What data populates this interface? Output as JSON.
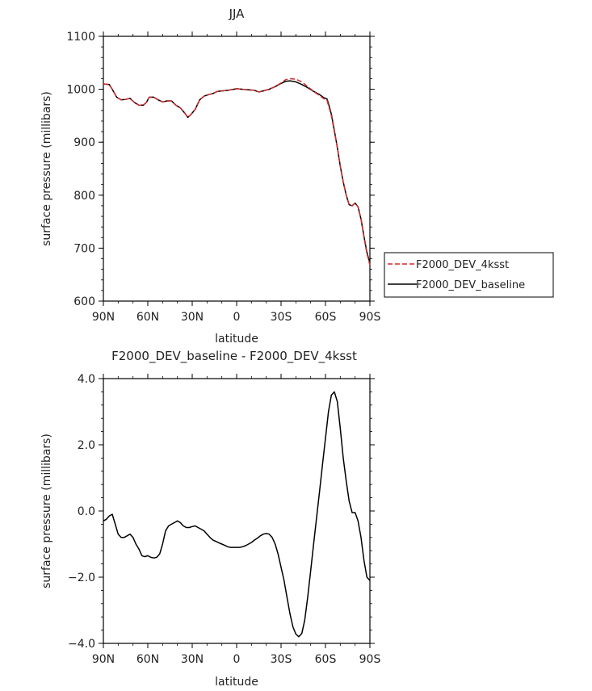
{
  "chart_data": [
    {
      "type": "line",
      "title": "JJA",
      "xlabel": "latitude",
      "ylabel": "surface pressure (millibars)",
      "xlim": [
        90,
        -90
      ],
      "ylim": [
        600,
        1100
      ],
      "xticks": [
        {
          "value": 90,
          "label": "90N"
        },
        {
          "value": 60,
          "label": "60N"
        },
        {
          "value": 30,
          "label": "30N"
        },
        {
          "value": 0,
          "label": "0"
        },
        {
          "value": -30,
          "label": "30S"
        },
        {
          "value": -60,
          "label": "60S"
        },
        {
          "value": -90,
          "label": "90S"
        }
      ],
      "yticks": [
        {
          "value": 600,
          "label": "600"
        },
        {
          "value": 700,
          "label": "700"
        },
        {
          "value": 800,
          "label": "800"
        },
        {
          "value": 900,
          "label": "900"
        },
        {
          "value": 1000,
          "label": "1000"
        },
        {
          "value": 1100,
          "label": "1100"
        }
      ],
      "legend_position": "right",
      "series": [
        {
          "name": "F2000_DEV_4ksst",
          "color": "#d42a2a",
          "dash": "dashed",
          "x": [
            90,
            86,
            84,
            81,
            78,
            75,
            72,
            69,
            66,
            63,
            61,
            59,
            56,
            53,
            50,
            47,
            44,
            41,
            38,
            35,
            33,
            31,
            28,
            25,
            22,
            19,
            16,
            13,
            10,
            6,
            2,
            0,
            -4,
            -8,
            -12,
            -15,
            -18,
            -22,
            -26,
            -30,
            -33,
            -36,
            -40,
            -44,
            -48,
            -52,
            -56,
            -59,
            -61,
            -62,
            -64,
            -66,
            -68,
            -70,
            -72,
            -74,
            -76,
            -78,
            -80,
            -82,
            -84,
            -86,
            -88,
            -90
          ],
          "y": [
            1010,
            1009,
            1000,
            985,
            980,
            981,
            983,
            975,
            970,
            970,
            975,
            985,
            985,
            980,
            976,
            978,
            978,
            970,
            965,
            955,
            947,
            952,
            962,
            980,
            987,
            990,
            992,
            996,
            997,
            998,
            1000,
            1001,
            1000,
            999,
            998,
            995,
            997,
            1000,
            1005,
            1012,
            1018,
            1020,
            1019,
            1014,
            1005,
            996,
            988,
            982,
            979,
            970,
            950,
            920,
            890,
            855,
            825,
            800,
            782,
            780,
            785,
            778,
            755,
            720,
            690,
            668
          ]
        },
        {
          "name": "F2000_DEV_baseline",
          "color": "#000000",
          "dash": "solid",
          "x": [
            90,
            86,
            84,
            81,
            78,
            75,
            72,
            69,
            66,
            63,
            61,
            59,
            56,
            53,
            50,
            47,
            44,
            41,
            38,
            35,
            33,
            31,
            28,
            25,
            22,
            19,
            16,
            13,
            10,
            6,
            2,
            0,
            -4,
            -8,
            -12,
            -15,
            -18,
            -22,
            -26,
            -30,
            -33,
            -36,
            -40,
            -44,
            -48,
            -52,
            -56,
            -59,
            -61,
            -62,
            -64,
            -66,
            -68,
            -70,
            -72,
            -74,
            -76,
            -78,
            -80,
            -82,
            -84,
            -86,
            -88,
            -90
          ],
          "y": [
            1010,
            1009,
            1000,
            985,
            980,
            981,
            983,
            975,
            970,
            970,
            975,
            985,
            985,
            980,
            976,
            978,
            978,
            970,
            965,
            955,
            947,
            952,
            962,
            980,
            987,
            990,
            992,
            996,
            997,
            998,
            1000,
            1001,
            1000,
            999,
            998,
            995,
            997,
            1000,
            1005,
            1011,
            1015,
            1016,
            1014,
            1009,
            1003,
            996,
            990,
            984,
            982,
            973,
            953,
            922,
            890,
            855,
            825,
            800,
            782,
            780,
            785,
            778,
            755,
            722,
            692,
            672
          ]
        }
      ]
    },
    {
      "type": "line",
      "title": "F2000_DEV_baseline - F2000_DEV_4ksst",
      "xlabel": "latitude",
      "ylabel": "surface pressure (millibars)",
      "xlim": [
        90,
        -90
      ],
      "ylim": [
        -4,
        4
      ],
      "xticks": [
        {
          "value": 90,
          "label": "90N"
        },
        {
          "value": 60,
          "label": "60N"
        },
        {
          "value": 30,
          "label": "30N"
        },
        {
          "value": 0,
          "label": "0"
        },
        {
          "value": -30,
          "label": "30S"
        },
        {
          "value": -60,
          "label": "60S"
        },
        {
          "value": -90,
          "label": "90S"
        }
      ],
      "yticks": [
        {
          "value": -4,
          "label": "−4.0"
        },
        {
          "value": -2,
          "label": "−2.0"
        },
        {
          "value": 0,
          "label": "0.0"
        },
        {
          "value": 2,
          "label": "2.0"
        },
        {
          "value": 4,
          "label": "4.0"
        }
      ],
      "series": [
        {
          "name": "",
          "color": "#000000",
          "dash": "solid",
          "x": [
            90,
            88,
            86,
            84,
            82,
            80,
            78,
            76,
            74,
            72,
            70,
            68,
            66,
            64,
            62,
            60,
            58,
            56,
            54,
            52,
            50,
            48,
            46,
            44,
            42,
            40,
            38,
            36,
            34,
            32,
            30,
            28,
            26,
            24,
            22,
            20,
            18,
            16,
            14,
            12,
            10,
            8,
            6,
            4,
            2,
            0,
            -2,
            -4,
            -6,
            -8,
            -10,
            -12,
            -14,
            -16,
            -18,
            -20,
            -22,
            -24,
            -26,
            -28,
            -30,
            -32,
            -34,
            -36,
            -38,
            -40,
            -42,
            -44,
            -46,
            -48,
            -50,
            -52,
            -54,
            -56,
            -58,
            -60,
            -62,
            -64,
            -66,
            -68,
            -70,
            -72,
            -74,
            -76,
            -78,
            -80,
            -82,
            -84,
            -86,
            -88,
            -90
          ],
          "y": [
            -0.3,
            -0.25,
            -0.15,
            -0.1,
            -0.4,
            -0.7,
            -0.8,
            -0.8,
            -0.75,
            -0.7,
            -0.8,
            -1.0,
            -1.15,
            -1.35,
            -1.38,
            -1.35,
            -1.4,
            -1.42,
            -1.4,
            -1.3,
            -1.0,
            -0.6,
            -0.45,
            -0.4,
            -0.35,
            -0.3,
            -0.35,
            -0.45,
            -0.5,
            -0.5,
            -0.47,
            -0.45,
            -0.5,
            -0.55,
            -0.6,
            -0.7,
            -0.8,
            -0.88,
            -0.92,
            -0.96,
            -1.0,
            -1.04,
            -1.08,
            -1.1,
            -1.1,
            -1.1,
            -1.1,
            -1.08,
            -1.05,
            -1.0,
            -0.95,
            -0.88,
            -0.82,
            -0.75,
            -0.7,
            -0.68,
            -0.7,
            -0.8,
            -1.0,
            -1.3,
            -1.7,
            -2.1,
            -2.6,
            -3.1,
            -3.5,
            -3.72,
            -3.8,
            -3.7,
            -3.3,
            -2.6,
            -1.8,
            -1.0,
            -0.2,
            0.6,
            1.4,
            2.2,
            3.0,
            3.5,
            3.6,
            3.3,
            2.5,
            1.6,
            0.9,
            0.3,
            -0.05,
            -0.05,
            -0.3,
            -0.8,
            -1.5,
            -2.0,
            -2.1
          ]
        }
      ]
    }
  ]
}
